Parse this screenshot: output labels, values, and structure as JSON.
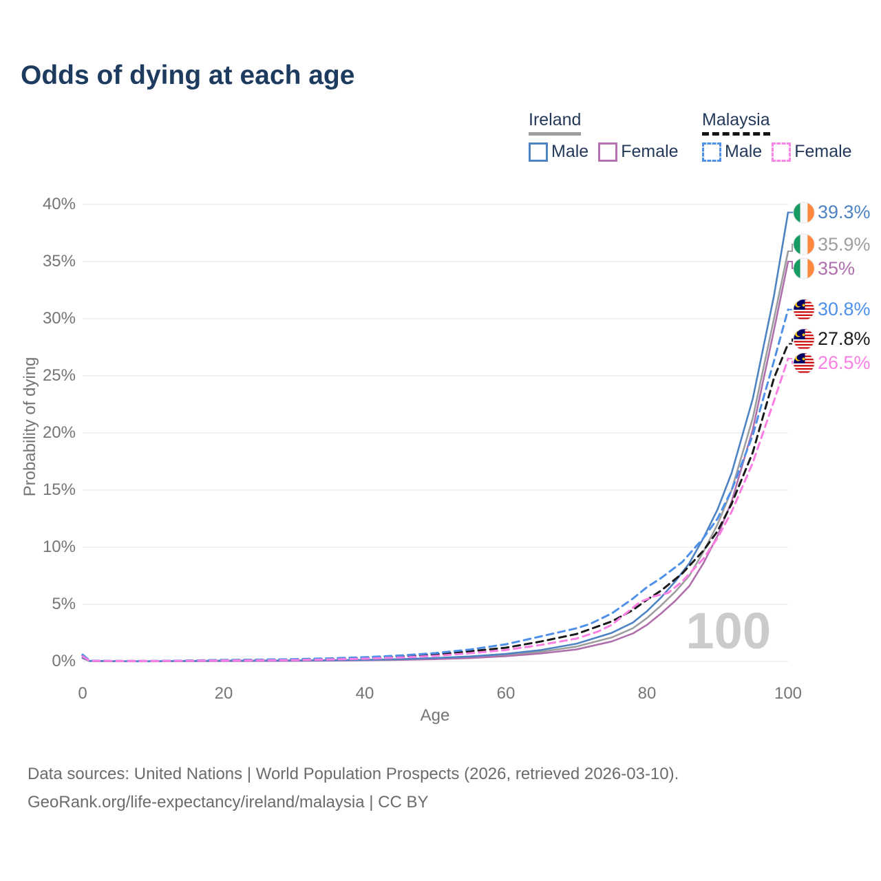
{
  "title": "Odds of dying at each age",
  "legend": {
    "groups": [
      {
        "label": "Ireland",
        "line_style": "solid",
        "underline_color": "#9e9e9e",
        "entries": [
          {
            "label": "Male",
            "color": "#4d82c3"
          },
          {
            "label": "Female",
            "color": "#b472b2"
          }
        ]
      },
      {
        "label": "Malaysia",
        "line_style": "dashed",
        "underline_color": "#141414",
        "entries": [
          {
            "label": "Male",
            "color": "#4e90e8"
          },
          {
            "label": "Female",
            "color": "#fb84e8"
          }
        ]
      }
    ]
  },
  "chart_data": {
    "type": "line",
    "xlabel": "Age",
    "ylabel": "Probability of dying",
    "xlim": [
      0,
      100
    ],
    "ylim": [
      0,
      40
    ],
    "x_ticks": [
      0,
      20,
      40,
      60,
      80,
      100
    ],
    "y_ticks": [
      "0%",
      "5%",
      "10%",
      "15%",
      "20%",
      "25%",
      "30%",
      "35%",
      "40%"
    ],
    "grid": "horizontal",
    "watermark": "100",
    "legend_position": "top-right",
    "series": [
      {
        "name": "Ireland Male",
        "country": "Ireland",
        "sex": "Male",
        "color": "#4d82c3",
        "dashed": false,
        "end_label": "39.3%",
        "flag": "ireland",
        "points": [
          [
            0,
            0.35
          ],
          [
            1,
            0.05
          ],
          [
            5,
            0.02
          ],
          [
            10,
            0.02
          ],
          [
            15,
            0.04
          ],
          [
            20,
            0.07
          ],
          [
            25,
            0.08
          ],
          [
            30,
            0.09
          ],
          [
            35,
            0.11
          ],
          [
            40,
            0.14
          ],
          [
            45,
            0.2
          ],
          [
            50,
            0.3
          ],
          [
            55,
            0.44
          ],
          [
            60,
            0.66
          ],
          [
            65,
            1.0
          ],
          [
            70,
            1.55
          ],
          [
            75,
            2.5
          ],
          [
            78,
            3.4
          ],
          [
            80,
            4.4
          ],
          [
            82,
            5.6
          ],
          [
            84,
            7.0
          ],
          [
            86,
            8.6
          ],
          [
            88,
            10.8
          ],
          [
            90,
            13.3
          ],
          [
            92,
            16.5
          ],
          [
            95,
            23.0
          ],
          [
            98,
            32.0
          ],
          [
            100,
            39.3
          ]
        ]
      },
      {
        "name": "Ireland Both sexes",
        "country": "Ireland",
        "sex": "Both",
        "color": "#9e9e9e",
        "dashed": false,
        "end_label": "35.9%",
        "flag": "ireland",
        "points": [
          [
            0,
            0.32
          ],
          [
            1,
            0.04
          ],
          [
            5,
            0.015
          ],
          [
            10,
            0.015
          ],
          [
            15,
            0.03
          ],
          [
            20,
            0.05
          ],
          [
            25,
            0.06
          ],
          [
            30,
            0.07
          ],
          [
            35,
            0.09
          ],
          [
            40,
            0.12
          ],
          [
            45,
            0.17
          ],
          [
            50,
            0.25
          ],
          [
            55,
            0.37
          ],
          [
            60,
            0.56
          ],
          [
            65,
            0.85
          ],
          [
            70,
            1.3
          ],
          [
            75,
            2.1
          ],
          [
            78,
            2.9
          ],
          [
            80,
            3.8
          ],
          [
            82,
            4.9
          ],
          [
            84,
            6.1
          ],
          [
            86,
            7.5
          ],
          [
            88,
            9.6
          ],
          [
            90,
            12.0
          ],
          [
            92,
            15.0
          ],
          [
            95,
            21.3
          ],
          [
            98,
            30.0
          ],
          [
            100,
            35.9
          ]
        ]
      },
      {
        "name": "Ireland Female",
        "country": "Ireland",
        "sex": "Female",
        "color": "#af6fad",
        "dashed": false,
        "end_label": "35%",
        "flag": "ireland",
        "points": [
          [
            0,
            0.28
          ],
          [
            1,
            0.035
          ],
          [
            5,
            0.012
          ],
          [
            10,
            0.012
          ],
          [
            15,
            0.025
          ],
          [
            20,
            0.035
          ],
          [
            25,
            0.04
          ],
          [
            30,
            0.05
          ],
          [
            35,
            0.07
          ],
          [
            40,
            0.1
          ],
          [
            45,
            0.14
          ],
          [
            50,
            0.2
          ],
          [
            55,
            0.3
          ],
          [
            60,
            0.46
          ],
          [
            65,
            0.7
          ],
          [
            70,
            1.05
          ],
          [
            75,
            1.75
          ],
          [
            78,
            2.45
          ],
          [
            80,
            3.2
          ],
          [
            82,
            4.2
          ],
          [
            84,
            5.3
          ],
          [
            86,
            6.6
          ],
          [
            88,
            8.6
          ],
          [
            90,
            11.0
          ],
          [
            92,
            14.0
          ],
          [
            95,
            20.3
          ],
          [
            98,
            29.0
          ],
          [
            100,
            35.0
          ]
        ]
      },
      {
        "name": "Malaysia Male",
        "country": "Malaysia",
        "sex": "Male",
        "color": "#4e90e8",
        "dashed": true,
        "end_label": "30.8%",
        "flag": "malaysia",
        "points": [
          [
            0,
            0.6
          ],
          [
            1,
            0.07
          ],
          [
            5,
            0.04
          ],
          [
            10,
            0.04
          ],
          [
            15,
            0.08
          ],
          [
            20,
            0.13
          ],
          [
            25,
            0.16
          ],
          [
            30,
            0.2
          ],
          [
            35,
            0.27
          ],
          [
            40,
            0.37
          ],
          [
            45,
            0.52
          ],
          [
            50,
            0.73
          ],
          [
            55,
            1.05
          ],
          [
            60,
            1.5
          ],
          [
            65,
            2.2
          ],
          [
            70,
            2.9
          ],
          [
            72,
            3.3
          ],
          [
            75,
            4.2
          ],
          [
            78,
            5.5
          ],
          [
            80,
            6.5
          ],
          [
            82,
            7.3
          ],
          [
            85,
            8.7
          ],
          [
            88,
            10.8
          ],
          [
            90,
            12.5
          ],
          [
            92,
            15.0
          ],
          [
            95,
            19.8
          ],
          [
            98,
            26.3
          ],
          [
            100,
            30.8
          ]
        ]
      },
      {
        "name": "Malaysia Both sexes",
        "country": "Malaysia",
        "sex": "Both",
        "color": "#1a1a1a",
        "dashed": true,
        "end_label": "27.8%",
        "flag": "malaysia",
        "points": [
          [
            0,
            0.52
          ],
          [
            1,
            0.06
          ],
          [
            5,
            0.035
          ],
          [
            10,
            0.035
          ],
          [
            15,
            0.065
          ],
          [
            20,
            0.11
          ],
          [
            25,
            0.13
          ],
          [
            30,
            0.16
          ],
          [
            35,
            0.22
          ],
          [
            40,
            0.3
          ],
          [
            45,
            0.43
          ],
          [
            50,
            0.61
          ],
          [
            55,
            0.9
          ],
          [
            60,
            1.2
          ],
          [
            65,
            1.75
          ],
          [
            70,
            2.4
          ],
          [
            75,
            3.5
          ],
          [
            78,
            4.5
          ],
          [
            80,
            5.4
          ],
          [
            82,
            6.2
          ],
          [
            85,
            7.7
          ],
          [
            88,
            9.7
          ],
          [
            90,
            11.4
          ],
          [
            92,
            13.8
          ],
          [
            95,
            18.3
          ],
          [
            98,
            24.8
          ],
          [
            100,
            27.8
          ]
        ]
      },
      {
        "name": "Malaysia Female",
        "country": "Malaysia",
        "sex": "Female",
        "color": "#fb7ee3",
        "dashed": true,
        "end_label": "26.5%",
        "flag": "malaysia",
        "points": [
          [
            0,
            0.45
          ],
          [
            1,
            0.05
          ],
          [
            5,
            0.03
          ],
          [
            10,
            0.03
          ],
          [
            15,
            0.05
          ],
          [
            20,
            0.08
          ],
          [
            25,
            0.1
          ],
          [
            30,
            0.12
          ],
          [
            35,
            0.17
          ],
          [
            40,
            0.24
          ],
          [
            45,
            0.34
          ],
          [
            50,
            0.49
          ],
          [
            55,
            0.72
          ],
          [
            60,
            1.0
          ],
          [
            65,
            1.45
          ],
          [
            70,
            2.0
          ],
          [
            73,
            2.6
          ],
          [
            75,
            3.2
          ],
          [
            77,
            4.2
          ],
          [
            79,
            5.2
          ],
          [
            81,
            5.7
          ],
          [
            83,
            6.0
          ],
          [
            85,
            7.0
          ],
          [
            88,
            9.0
          ],
          [
            90,
            10.8
          ],
          [
            92,
            13.1
          ],
          [
            95,
            17.4
          ],
          [
            98,
            22.8
          ],
          [
            100,
            26.5
          ]
        ]
      }
    ]
  },
  "footer": {
    "line1": "Data sources: United Nations | World Population Prospects (2026, retrieved 2026-03-10).",
    "line2": "GeoRank.org/life-expectancy/ireland/malaysia | CC BY"
  }
}
